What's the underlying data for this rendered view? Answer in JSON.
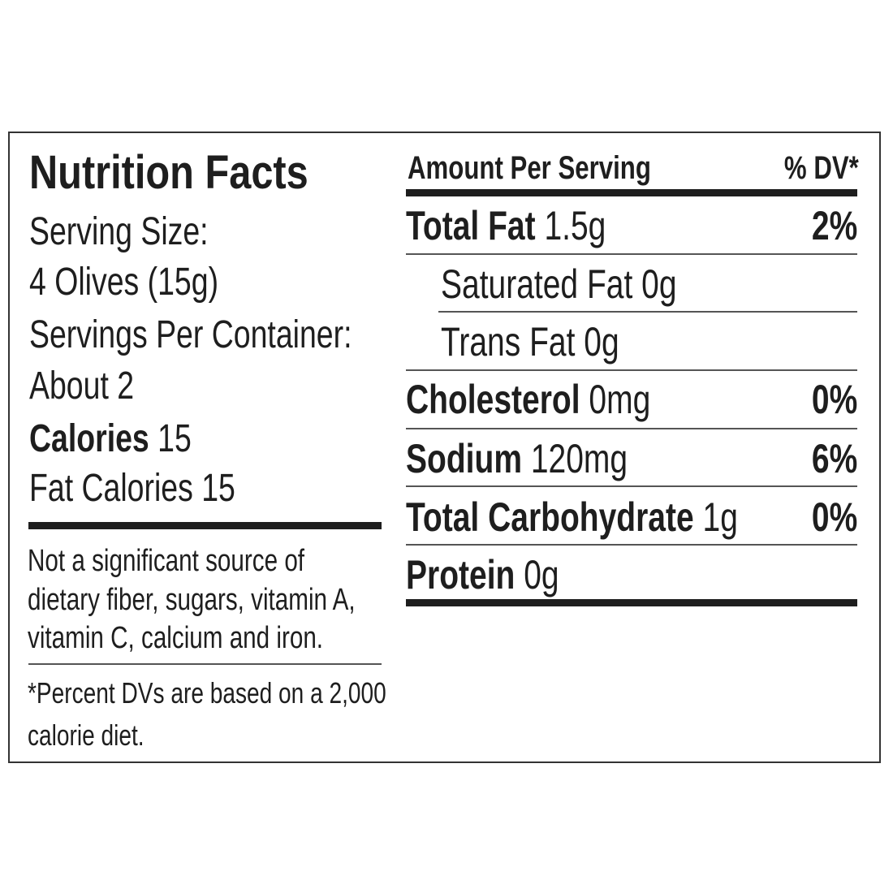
{
  "title": "Nutrition Facts",
  "serving": {
    "size_label": "Serving Size:",
    "size_value": "4 Olives (15g)",
    "per_container_label": "Servings Per Container:",
    "per_container_value": "About 2",
    "calories_label": "Calories",
    "calories_value": "15",
    "fat_calories": "Fat Calories 15"
  },
  "notes": {
    "not_significant": [
      "Not a significant source of",
      "dietary fiber, sugars, vitamin A,",
      "vitamin C, calcium and iron."
    ],
    "dv_footnote": [
      "*Percent DVs are based on a 2,000",
      "calorie diet."
    ]
  },
  "header": {
    "amount": "Amount Per Serving",
    "dv": "% DV*"
  },
  "nutrients": [
    {
      "name": "Total Fat",
      "amount": "1.5g",
      "dv": "2%",
      "bold": true
    },
    {
      "name": "Saturated Fat",
      "amount": "0g",
      "dv": "",
      "bold": false
    },
    {
      "name": "Trans Fat",
      "amount": "0g",
      "dv": "",
      "bold": false
    },
    {
      "name": "Cholesterol",
      "amount": "0mg",
      "dv": "0%",
      "bold": true
    },
    {
      "name": "Sodium",
      "amount": "120mg",
      "dv": "6%",
      "bold": true
    },
    {
      "name": "Total Carbohydrate",
      "amount": "1g",
      "dv": "0%",
      "bold": true
    },
    {
      "name": "Protein",
      "amount": "0g",
      "dv": "",
      "bold": true
    }
  ]
}
